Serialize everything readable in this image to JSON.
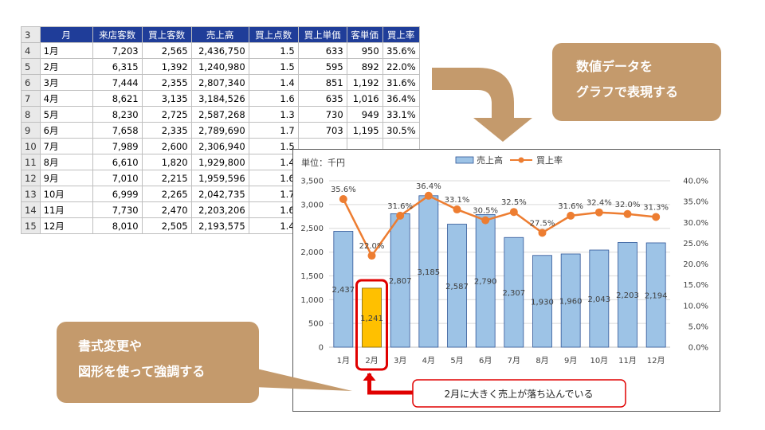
{
  "table": {
    "row_numbers": [
      "3",
      "4",
      "5",
      "6",
      "7",
      "8",
      "9",
      "10",
      "11",
      "12",
      "13",
      "14",
      "15"
    ],
    "headers": [
      "月",
      "来店客数",
      "買上客数",
      "売上高",
      "買上点数",
      "買上単価",
      "客単価",
      "買上率"
    ],
    "rows": [
      [
        "1月",
        "7,203",
        "2,565",
        "2,436,750",
        "1.5",
        "633",
        "950",
        "35.6%"
      ],
      [
        "2月",
        "6,315",
        "1,392",
        "1,240,980",
        "1.5",
        "595",
        "892",
        "22.0%"
      ],
      [
        "3月",
        "7,444",
        "2,355",
        "2,807,340",
        "1.4",
        "851",
        "1,192",
        "31.6%"
      ],
      [
        "4月",
        "8,621",
        "3,135",
        "3,184,526",
        "1.6",
        "635",
        "1,016",
        "36.4%"
      ],
      [
        "5月",
        "8,230",
        "2,725",
        "2,587,268",
        "1.3",
        "730",
        "949",
        "33.1%"
      ],
      [
        "6月",
        "7,658",
        "2,335",
        "2,789,690",
        "1.7",
        "703",
        "1,195",
        "30.5%"
      ],
      [
        "7月",
        "7,989",
        "2,600",
        "2,306,940",
        "1.5",
        "",
        "",
        ""
      ],
      [
        "8月",
        "6,610",
        "1,820",
        "1,929,800",
        "1.4",
        "",
        "",
        ""
      ],
      [
        "9月",
        "7,010",
        "2,215",
        "1,959,596",
        "1.6",
        "",
        "",
        ""
      ],
      [
        "10月",
        "6,999",
        "2,265",
        "2,042,735",
        "1.7",
        "",
        "",
        ""
      ],
      [
        "11月",
        "7,730",
        "2,470",
        "2,203,206",
        "1.6",
        "",
        "",
        ""
      ],
      [
        "12月",
        "8,010",
        "2,505",
        "2,193,575",
        "1.4",
        "",
        "",
        ""
      ]
    ]
  },
  "callouts": {
    "top_line1": "数値データを",
    "top_line2": "グラフで表現する",
    "bottom_line1": "書式変更や",
    "bottom_line2": "図形を使って強調する",
    "note": "2月に大きく売上が落ち込んでいる"
  },
  "colors": {
    "bar": "#9dc3e6",
    "bar_highlight": "#ffc000",
    "line": "#ed7d31",
    "highlight_border": "#e00000",
    "callout": "#c49a6c",
    "header": "#1f3d99"
  },
  "chart_data": {
    "type": "bar",
    "unit_label": "単位：千円",
    "categories": [
      "1月",
      "2月",
      "3月",
      "4月",
      "5月",
      "6月",
      "7月",
      "8月",
      "9月",
      "10月",
      "11月",
      "12月"
    ],
    "series": [
      {
        "name": "売上高",
        "type": "bar",
        "axis": "left",
        "values": [
          2437,
          1241,
          2807,
          3185,
          2587,
          2790,
          2307,
          1930,
          1960,
          2043,
          2203,
          2194
        ],
        "labels": [
          "2,437",
          "1,241",
          "2,807",
          "3,185",
          "2,587",
          "2,790",
          "2,307",
          "1,930",
          "1,960",
          "2,043",
          "2,203",
          "2,194"
        ]
      },
      {
        "name": "買上率",
        "type": "line",
        "axis": "right",
        "values": [
          35.6,
          22.0,
          31.6,
          36.4,
          33.1,
          30.5,
          32.5,
          27.5,
          31.6,
          32.4,
          32.0,
          31.3
        ],
        "labels": [
          "35.6%",
          "22.0%",
          "31.6%",
          "36.4%",
          "33.1%",
          "30.5%",
          "32.5%",
          "27.5%",
          "31.6%",
          "32.4%",
          "32.0%",
          "31.3%"
        ]
      }
    ],
    "y_left": {
      "lim": [
        0,
        3500
      ],
      "ticks": [
        "0",
        "500",
        "1,000",
        "1,500",
        "2,000",
        "2,500",
        "3,000",
        "3,500"
      ]
    },
    "y_right": {
      "lim": [
        0,
        40
      ],
      "ticks": [
        "0.0%",
        "5.0%",
        "10.0%",
        "15.0%",
        "20.0%",
        "25.0%",
        "30.0%",
        "35.0%",
        "40.0%"
      ]
    },
    "highlight_category": "2月",
    "legend_position": "top",
    "grid": true
  }
}
